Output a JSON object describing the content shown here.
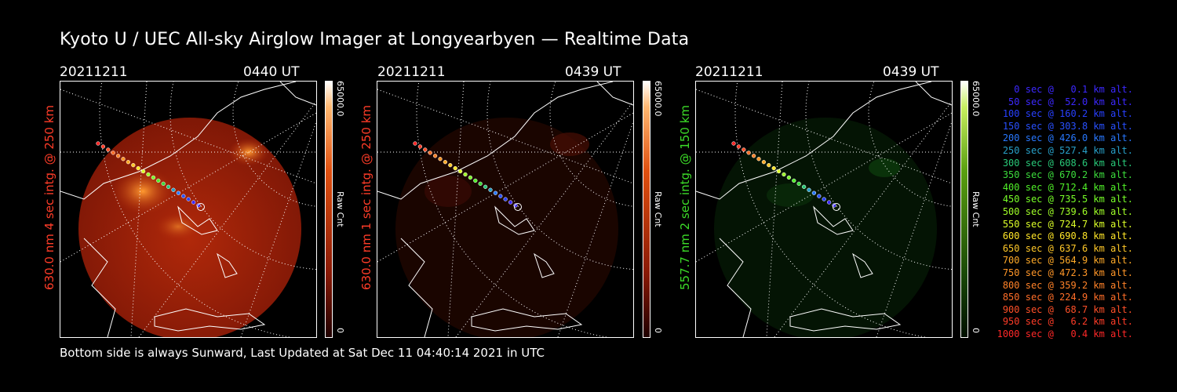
{
  "title": "Kyoto U / UEC All-sky Airglow Imager at Longyearbyen — Realtime Data",
  "footer": "Bottom side is always Sunward, Last Updated at Sat Dec 11 04:40:14 2021 in UTC",
  "panels": [
    {
      "date": "20211211",
      "time": "0440 UT",
      "side_label": "630.0 nm 4 sec intg. @ 250 km",
      "side_color": "#ff3c28",
      "cbar_max": "65000.0",
      "cbar_min": "0",
      "cbar_unit": "Raw Cnt"
    },
    {
      "date": "20211211",
      "time": "0439 UT",
      "side_label": "630.0 nm 1 sec intg. @ 250 km",
      "side_color": "#ff3c28",
      "cbar_max": "65000.0",
      "cbar_min": "0",
      "cbar_unit": "Raw Cnt"
    },
    {
      "date": "20211211",
      "time": "0439 UT",
      "side_label": "557.7 nm 2 sec intg. @ 150 km",
      "side_color": "#3cdc28",
      "cbar_max": "65000.0",
      "cbar_min": "0",
      "cbar_unit": "Raw Cnt"
    }
  ],
  "colors": {
    "red_glow": "#a01a08",
    "green_glow": "#0a3a0a"
  },
  "legend": [
    {
      "text": "0 sec @   0.1 km alt.",
      "color": "#3c28ff"
    },
    {
      "text": "50 sec @  52.0 km alt.",
      "color": "#3c28ff"
    },
    {
      "text": "100 sec @ 160.2 km alt.",
      "color": "#2840ff"
    },
    {
      "text": "150 sec @ 303.8 km alt.",
      "color": "#2850ff"
    },
    {
      "text": "200 sec @ 426.0 km alt.",
      "color": "#2878ff"
    },
    {
      "text": "250 sec @ 527.4 km alt.",
      "color": "#28a0c8"
    },
    {
      "text": "300 sec @ 608.6 km alt.",
      "color": "#28c878"
    },
    {
      "text": "350 sec @ 670.2 km alt.",
      "color": "#3cdc3c"
    },
    {
      "text": "400 sec @ 712.4 km alt.",
      "color": "#50f028"
    },
    {
      "text": "450 sec @ 735.5 km alt.",
      "color": "#78ff28"
    },
    {
      "text": "500 sec @ 739.6 km alt.",
      "color": "#a0ff28"
    },
    {
      "text": "550 sec @ 724.7 km alt.",
      "color": "#dcff28"
    },
    {
      "text": "600 sec @ 690.8 km alt.",
      "color": "#ffe628"
    },
    {
      "text": "650 sec @ 637.6 km alt.",
      "color": "#ffc828"
    },
    {
      "text": "700 sec @ 564.9 km alt.",
      "color": "#ffaa28"
    },
    {
      "text": "750 sec @ 472.3 km alt.",
      "color": "#ff9628"
    },
    {
      "text": "800 sec @ 359.2 km alt.",
      "color": "#ff8228"
    },
    {
      "text": "850 sec @ 224.9 km alt.",
      "color": "#ff6e28"
    },
    {
      "text": "900 sec @  68.7 km alt.",
      "color": "#ff5028"
    },
    {
      "text": "950 sec @   6.2 km alt.",
      "color": "#ff3c28"
    },
    {
      "text": "1000 sec @   0.4 km alt.",
      "color": "#ff2828"
    }
  ]
}
